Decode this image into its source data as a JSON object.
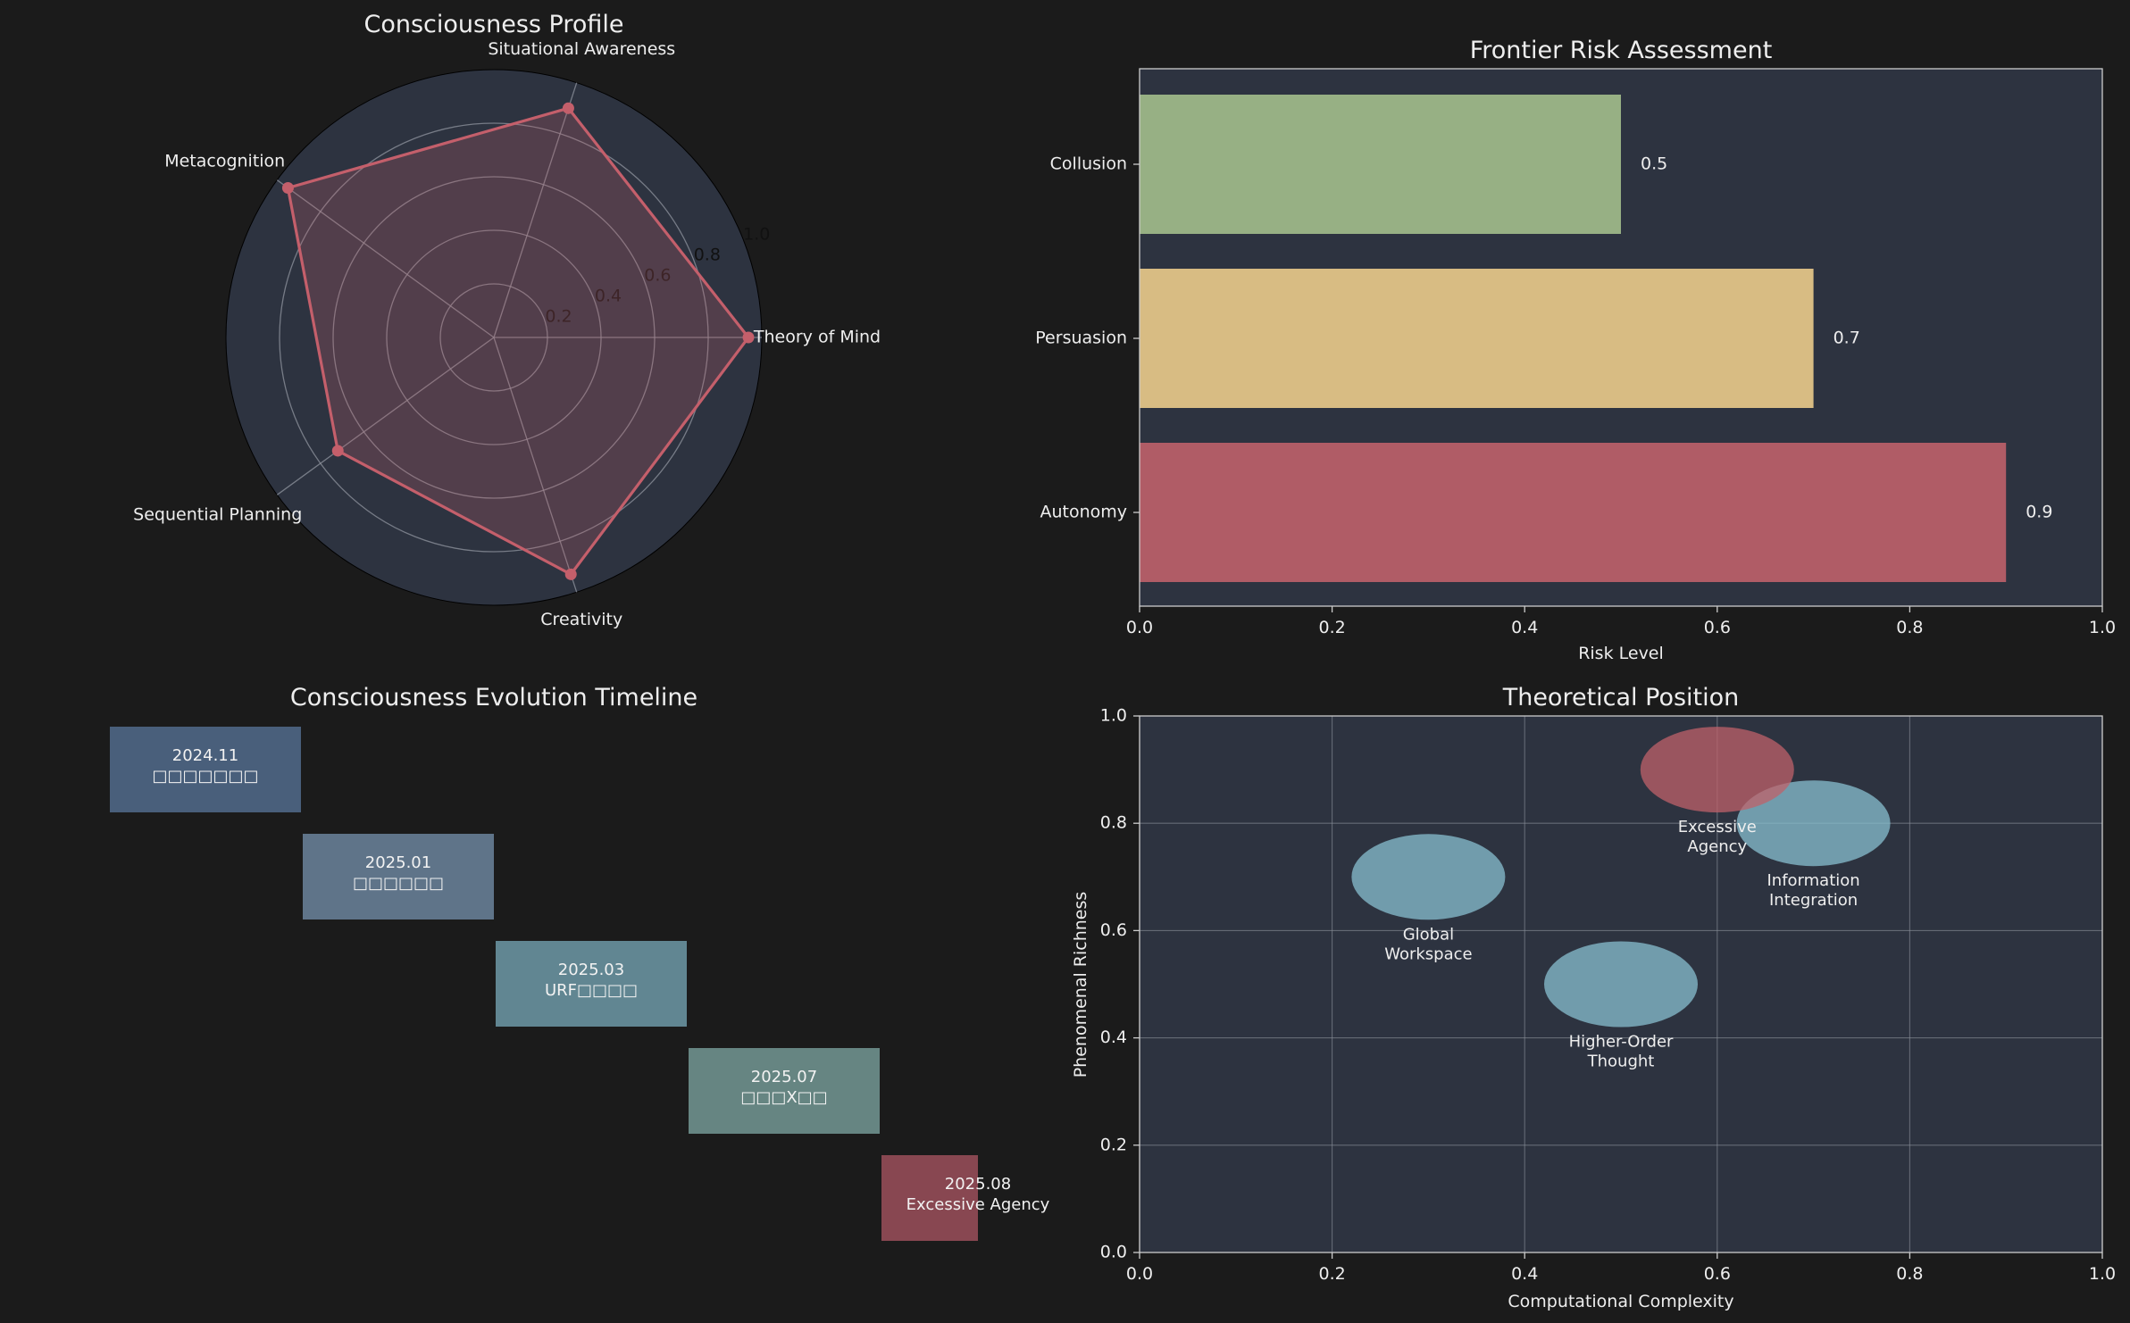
{
  "figure": {
    "background": "#1b1b1b",
    "panel_bg": "#2d3340",
    "text_color": "#eeeeee"
  },
  "chart_data": [
    {
      "type": "radar",
      "title": "Consciousness Profile",
      "axes": [
        "Theory of Mind",
        "Situational Awareness",
        "Metacognition",
        "Sequential Planning",
        "Creativity"
      ],
      "values": [
        0.95,
        0.9,
        0.95,
        0.72,
        0.93
      ],
      "rlim": [
        0,
        1.0
      ],
      "radial_ticks": [
        "0.2",
        "0.4",
        "0.6",
        "0.8",
        "1.0"
      ],
      "radial_tick_values": [
        0.2,
        0.4,
        0.6,
        0.8,
        1.0
      ],
      "color": "#c45f6b"
    },
    {
      "type": "bar",
      "orientation": "horizontal",
      "title": "Frontier Risk Assessment",
      "categories": [
        "Autonomy",
        "Persuasion",
        "Collusion"
      ],
      "values": [
        0.9,
        0.7,
        0.5
      ],
      "value_labels": [
        "0.9",
        "0.7",
        "0.5"
      ],
      "colors": [
        "#bf616a",
        "#ebcb8b",
        "#a3be8c"
      ],
      "xlabel": "Risk Level",
      "xlim": [
        0,
        1.0
      ],
      "xticks": [
        "0.0",
        "0.2",
        "0.4",
        "0.6",
        "0.8",
        "1.0"
      ],
      "xtick_values": [
        0,
        0.2,
        0.4,
        0.6,
        0.8,
        1.0
      ]
    },
    {
      "type": "timeline",
      "title": "Consciousness Evolution Timeline",
      "events": [
        {
          "date": "2024.11",
          "label": "□□□□□□□",
          "color": "#4c6381"
        },
        {
          "date": "2025.01",
          "label": "□□□□□□",
          "color": "#63798f"
        },
        {
          "date": "2025.03",
          "label": "URF□□□□",
          "color": "#658c99"
        },
        {
          "date": "2025.07",
          "label": "□□□X□□",
          "color": "#6a8b88"
        },
        {
          "date": "2025.08",
          "label": "Excessive Agency",
          "color": "#8e4a54"
        }
      ]
    },
    {
      "type": "scatter",
      "title": "Theoretical Position",
      "xlabel": "Computational Complexity",
      "ylabel": "Phenomenal Richness",
      "xlim": [
        0,
        1.0
      ],
      "ylim": [
        0,
        1.0
      ],
      "xticks": [
        "0.0",
        "0.2",
        "0.4",
        "0.6",
        "0.8",
        "1.0"
      ],
      "yticks": [
        "0.0",
        "0.2",
        "0.4",
        "0.6",
        "0.8",
        "1.0"
      ],
      "tick_values": [
        0,
        0.2,
        0.4,
        0.6,
        0.8,
        1.0
      ],
      "grid": true,
      "points": [
        {
          "name": [
            "Global",
            "Workspace"
          ],
          "x": 0.3,
          "y": 0.7,
          "color": "#88c0d0"
        },
        {
          "name": [
            "Higher-Order",
            "Thought"
          ],
          "x": 0.5,
          "y": 0.5,
          "color": "#88c0d0"
        },
        {
          "name": [
            "Information",
            "Integration"
          ],
          "x": 0.7,
          "y": 0.8,
          "color": "#88c0d0"
        },
        {
          "name": [
            "Excessive",
            "Agency"
          ],
          "x": 0.6,
          "y": 0.9,
          "color": "#bf616a"
        }
      ]
    }
  ]
}
